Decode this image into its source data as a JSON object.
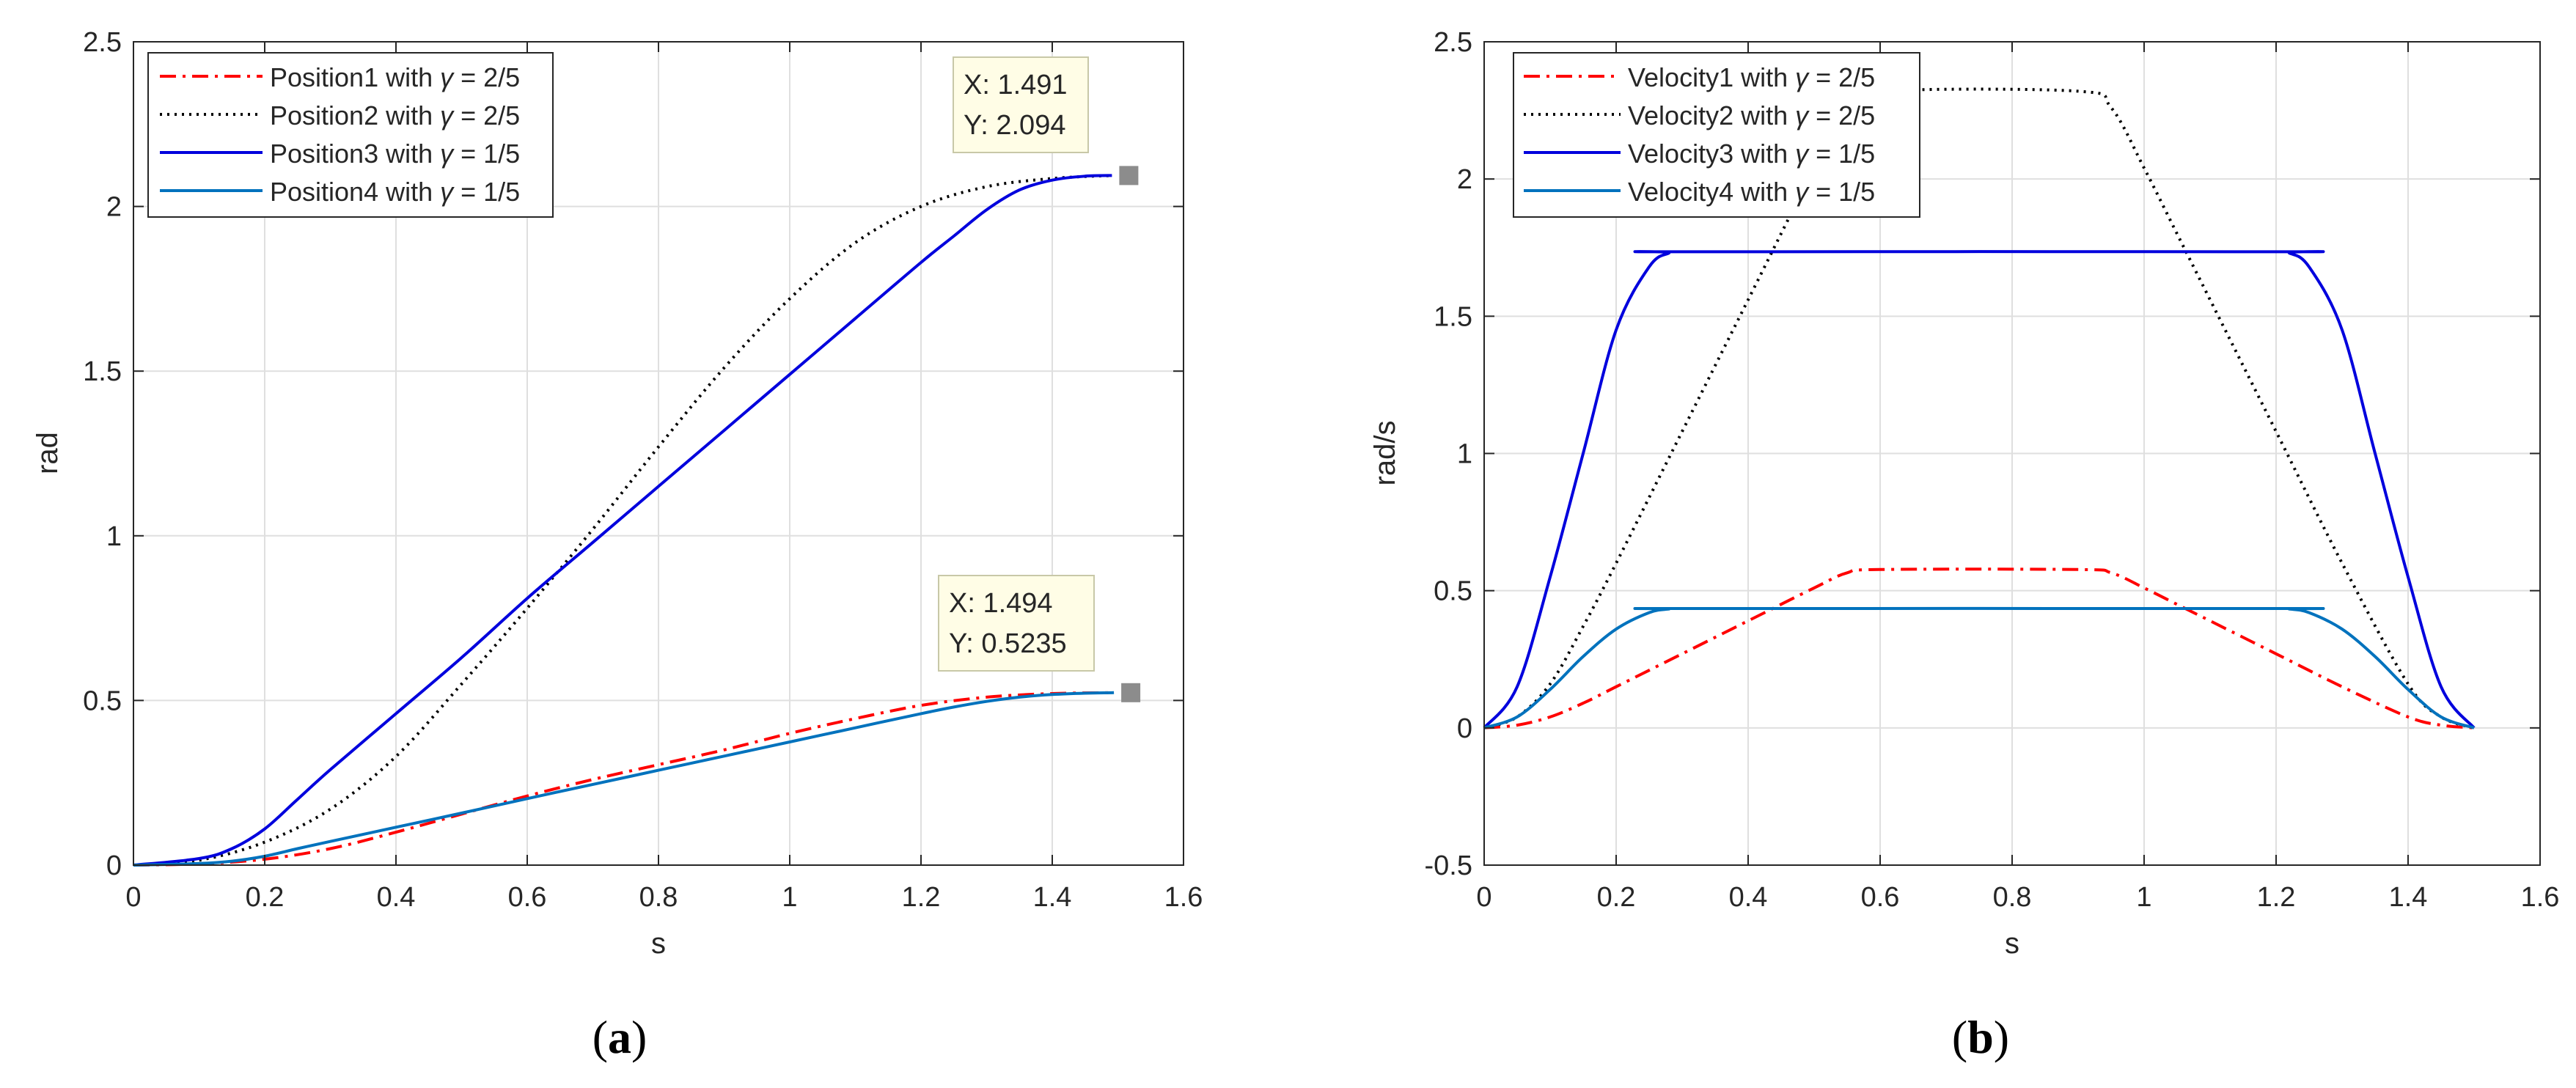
{
  "chart_data": [
    {
      "type": "line",
      "panel_label": "a",
      "panel_label_open": "(",
      "panel_label_close": ")",
      "title": "",
      "xlabel": "s",
      "ylabel": "rad",
      "xlim": [
        0,
        1.6
      ],
      "ylim": [
        0,
        2.5
      ],
      "xticks": [
        0,
        0.2,
        0.4,
        0.6,
        0.8,
        1,
        1.2,
        1.4,
        1.6
      ],
      "xtick_labels": [
        "0",
        "0.2",
        "0.4",
        "0.6",
        "0.8",
        "1",
        "1.2",
        "1.4",
        "1.6"
      ],
      "yticks": [
        0,
        0.5,
        1,
        1.5,
        2,
        2.5
      ],
      "ytick_labels": [
        "0",
        "0.5",
        "1",
        "1.5",
        "2",
        "2.5"
      ],
      "grid": true,
      "legend_position": "top-left",
      "series": [
        {
          "name_prefix": "Position1 with ",
          "gamma": "γ",
          "name_suffix": " = 2/5",
          "color": "#ff0000",
          "dash": "dashdot",
          "width": 4,
          "x": [
            0,
            0.1,
            0.2,
            0.3,
            0.4,
            0.5,
            0.6,
            0.7,
            0.8,
            0.9,
            1.0,
            1.1,
            1.2,
            1.3,
            1.4,
            1.491
          ],
          "y": [
            0,
            0.004,
            0.018,
            0.05,
            0.1,
            0.155,
            0.21,
            0.26,
            0.305,
            0.35,
            0.4,
            0.445,
            0.485,
            0.51,
            0.521,
            0.5235
          ]
        },
        {
          "name_prefix": "Position2 with ",
          "gamma": "γ",
          "name_suffix": " = 2/5",
          "color": "#000000",
          "dash": "dotted",
          "width": 4,
          "x": [
            0,
            0.1,
            0.2,
            0.3,
            0.4,
            0.5,
            0.6,
            0.7,
            0.8,
            0.9,
            1.0,
            1.1,
            1.2,
            1.3,
            1.4,
            1.491
          ],
          "y": [
            0,
            0.015,
            0.07,
            0.17,
            0.33,
            0.55,
            0.78,
            1.02,
            1.27,
            1.51,
            1.72,
            1.89,
            2.0,
            2.06,
            2.085,
            2.094
          ]
        },
        {
          "name_prefix": "Position3 with ",
          "gamma": "γ",
          "name_suffix": " = 1/5",
          "color": "#0000dd",
          "dash": "solid",
          "width": 4,
          "x": [
            0,
            0.1,
            0.15,
            0.2,
            0.25,
            0.3,
            0.4,
            0.5,
            0.6,
            0.7,
            0.8,
            0.9,
            1.0,
            1.1,
            1.2,
            1.25,
            1.3,
            1.35,
            1.4,
            1.45,
            1.491
          ],
          "y": [
            0,
            0.02,
            0.05,
            0.11,
            0.2,
            0.29,
            0.46,
            0.63,
            0.81,
            0.98,
            1.15,
            1.32,
            1.49,
            1.66,
            1.83,
            1.91,
            1.99,
            2.05,
            2.08,
            2.092,
            2.094
          ]
        },
        {
          "name_prefix": "Position4 with ",
          "gamma": "γ",
          "name_suffix": " = 1/5",
          "color": "#0072bd",
          "dash": "solid",
          "width": 4,
          "x": [
            0,
            0.1,
            0.15,
            0.2,
            0.25,
            0.3,
            0.4,
            0.5,
            0.6,
            0.7,
            0.8,
            0.9,
            1.0,
            1.1,
            1.2,
            1.25,
            1.3,
            1.35,
            1.4,
            1.45,
            1.494
          ],
          "y": [
            0,
            0.005,
            0.012,
            0.027,
            0.05,
            0.072,
            0.115,
            0.158,
            0.202,
            0.245,
            0.288,
            0.331,
            0.374,
            0.417,
            0.46,
            0.48,
            0.497,
            0.51,
            0.518,
            0.522,
            0.5235
          ]
        }
      ],
      "datatips": [
        {
          "x": 1.491,
          "y": 2.094,
          "line1": "X: 1.491",
          "line2": "Y: 2.094"
        },
        {
          "x": 1.494,
          "y": 0.5235,
          "line1": "X: 1.494",
          "line2": "Y: 0.5235"
        }
      ]
    },
    {
      "type": "line",
      "panel_label": "b",
      "panel_label_open": "(",
      "panel_label_close": ")",
      "title": "",
      "xlabel": "s",
      "ylabel": "rad/s",
      "xlim": [
        0,
        1.6
      ],
      "ylim": [
        -0.5,
        2.5
      ],
      "xticks": [
        0,
        0.2,
        0.4,
        0.6,
        0.8,
        1,
        1.2,
        1.4,
        1.6
      ],
      "xtick_labels": [
        "0",
        "0.2",
        "0.4",
        "0.6",
        "0.8",
        "1",
        "1.2",
        "1.4",
        "1.6"
      ],
      "yticks": [
        -0.5,
        0,
        0.5,
        1,
        1.5,
        2,
        2.5
      ],
      "ytick_labels": [
        "-0.5",
        "0",
        "0.5",
        "1",
        "1.5",
        "2",
        "2.5"
      ],
      "grid": true,
      "legend_position": "top-left",
      "series": [
        {
          "name_prefix": "Velocity1 with ",
          "gamma": "γ",
          "name_suffix": " = 2/5",
          "color": "#ff0000",
          "dash": "dashdot",
          "width": 4,
          "x": [
            0,
            0.05,
            0.1,
            0.15,
            0.2,
            0.3,
            0.4,
            0.5,
            0.55,
            0.6,
            0.9,
            0.95,
            1.0,
            1.05,
            1.1,
            1.2,
            1.3,
            1.4,
            1.45,
            1.5
          ],
          "y": [
            0,
            0.01,
            0.04,
            0.09,
            0.15,
            0.27,
            0.39,
            0.51,
            0.565,
            0.577,
            0.577,
            0.565,
            0.51,
            0.45,
            0.39,
            0.27,
            0.15,
            0.04,
            0.01,
            0
          ]
        },
        {
          "name_prefix": "Velocity2 with ",
          "gamma": "γ",
          "name_suffix": " = 2/5",
          "color": "#000000",
          "dash": "dotted",
          "width": 4,
          "x": [
            0,
            0.05,
            0.1,
            0.15,
            0.2,
            0.3,
            0.4,
            0.5,
            0.55,
            0.6,
            0.9,
            0.95,
            1.0,
            1.05,
            1.1,
            1.2,
            1.3,
            1.4,
            1.45,
            1.5
          ],
          "y": [
            0,
            0.04,
            0.16,
            0.37,
            0.6,
            1.08,
            1.56,
            2.04,
            2.26,
            2.32,
            2.32,
            2.26,
            2.04,
            1.8,
            1.56,
            1.08,
            0.6,
            0.16,
            0.04,
            0
          ]
        },
        {
          "name_prefix": "Velocity3 with ",
          "gamma": "γ",
          "name_suffix": " = 1/5",
          "color": "#0000dd",
          "dash": "solid",
          "width": 4,
          "x": [
            0,
            0.05,
            0.1,
            0.15,
            0.2,
            0.25,
            0.28,
            0.3,
            1.2,
            1.22,
            1.25,
            1.3,
            1.35,
            1.4,
            1.45,
            1.5
          ],
          "y": [
            0,
            0.15,
            0.55,
            1.0,
            1.45,
            1.68,
            1.73,
            1.735,
            1.735,
            1.73,
            1.68,
            1.45,
            1.0,
            0.55,
            0.15,
            0
          ]
        },
        {
          "name_prefix": "Velocity4 with ",
          "gamma": "γ",
          "name_suffix": " = 1/5",
          "color": "#0072bd",
          "dash": "solid",
          "width": 4,
          "x": [
            0,
            0.05,
            0.1,
            0.15,
            0.2,
            0.25,
            0.28,
            0.3,
            1.2,
            1.22,
            1.25,
            1.3,
            1.35,
            1.4,
            1.45,
            1.5
          ],
          "y": [
            0,
            0.04,
            0.14,
            0.26,
            0.36,
            0.42,
            0.433,
            0.435,
            0.435,
            0.433,
            0.42,
            0.36,
            0.26,
            0.14,
            0.04,
            0
          ]
        }
      ],
      "datatips": []
    }
  ],
  "colors": {
    "axes": "#262626",
    "grid": "#dfdfdf",
    "datatip_bg": "#fffde6",
    "datatip_border": "#c8c8a8",
    "datatip_marker": "#8c8c8c"
  }
}
